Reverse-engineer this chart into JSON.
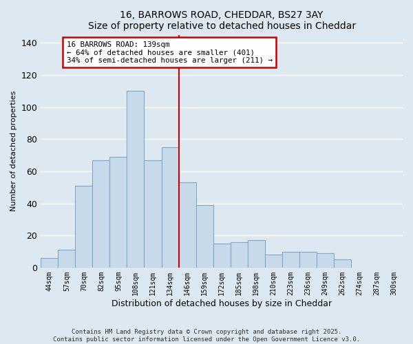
{
  "title": "16, BARROWS ROAD, CHEDDAR, BS27 3AY",
  "subtitle": "Size of property relative to detached houses in Cheddar",
  "xlabel": "Distribution of detached houses by size in Cheddar",
  "ylabel": "Number of detached properties",
  "bar_labels": [
    "44sqm",
    "57sqm",
    "70sqm",
    "82sqm",
    "95sqm",
    "108sqm",
    "121sqm",
    "134sqm",
    "146sqm",
    "159sqm",
    "172sqm",
    "185sqm",
    "198sqm",
    "210sqm",
    "223sqm",
    "236sqm",
    "249sqm",
    "262sqm",
    "274sqm",
    "287sqm",
    "300sqm"
  ],
  "bar_values": [
    6,
    11,
    51,
    67,
    69,
    110,
    67,
    75,
    53,
    39,
    15,
    16,
    17,
    8,
    10,
    10,
    9,
    5,
    0,
    0,
    0
  ],
  "bar_color": "#c8daea",
  "bar_edge_color": "#7aaac8",
  "ylim": [
    0,
    145
  ],
  "yticks": [
    0,
    20,
    40,
    60,
    80,
    100,
    120,
    140
  ],
  "vline_x_index": 7.5,
  "vline_color": "#cc0000",
  "annotation_title": "16 BARROWS ROAD: 139sqm",
  "annotation_line1": "← 64% of detached houses are smaller (401)",
  "annotation_line2": "34% of semi-detached houses are larger (211) →",
  "annotation_box_color": "#ffffff",
  "annotation_box_edge": "#cc0000",
  "footer1": "Contains HM Land Registry data © Crown copyright and database right 2025.",
  "footer2": "Contains public sector information licensed under the Open Government Licence v3.0.",
  "background_color": "#dde8f0",
  "grid_color": "#ffffff"
}
